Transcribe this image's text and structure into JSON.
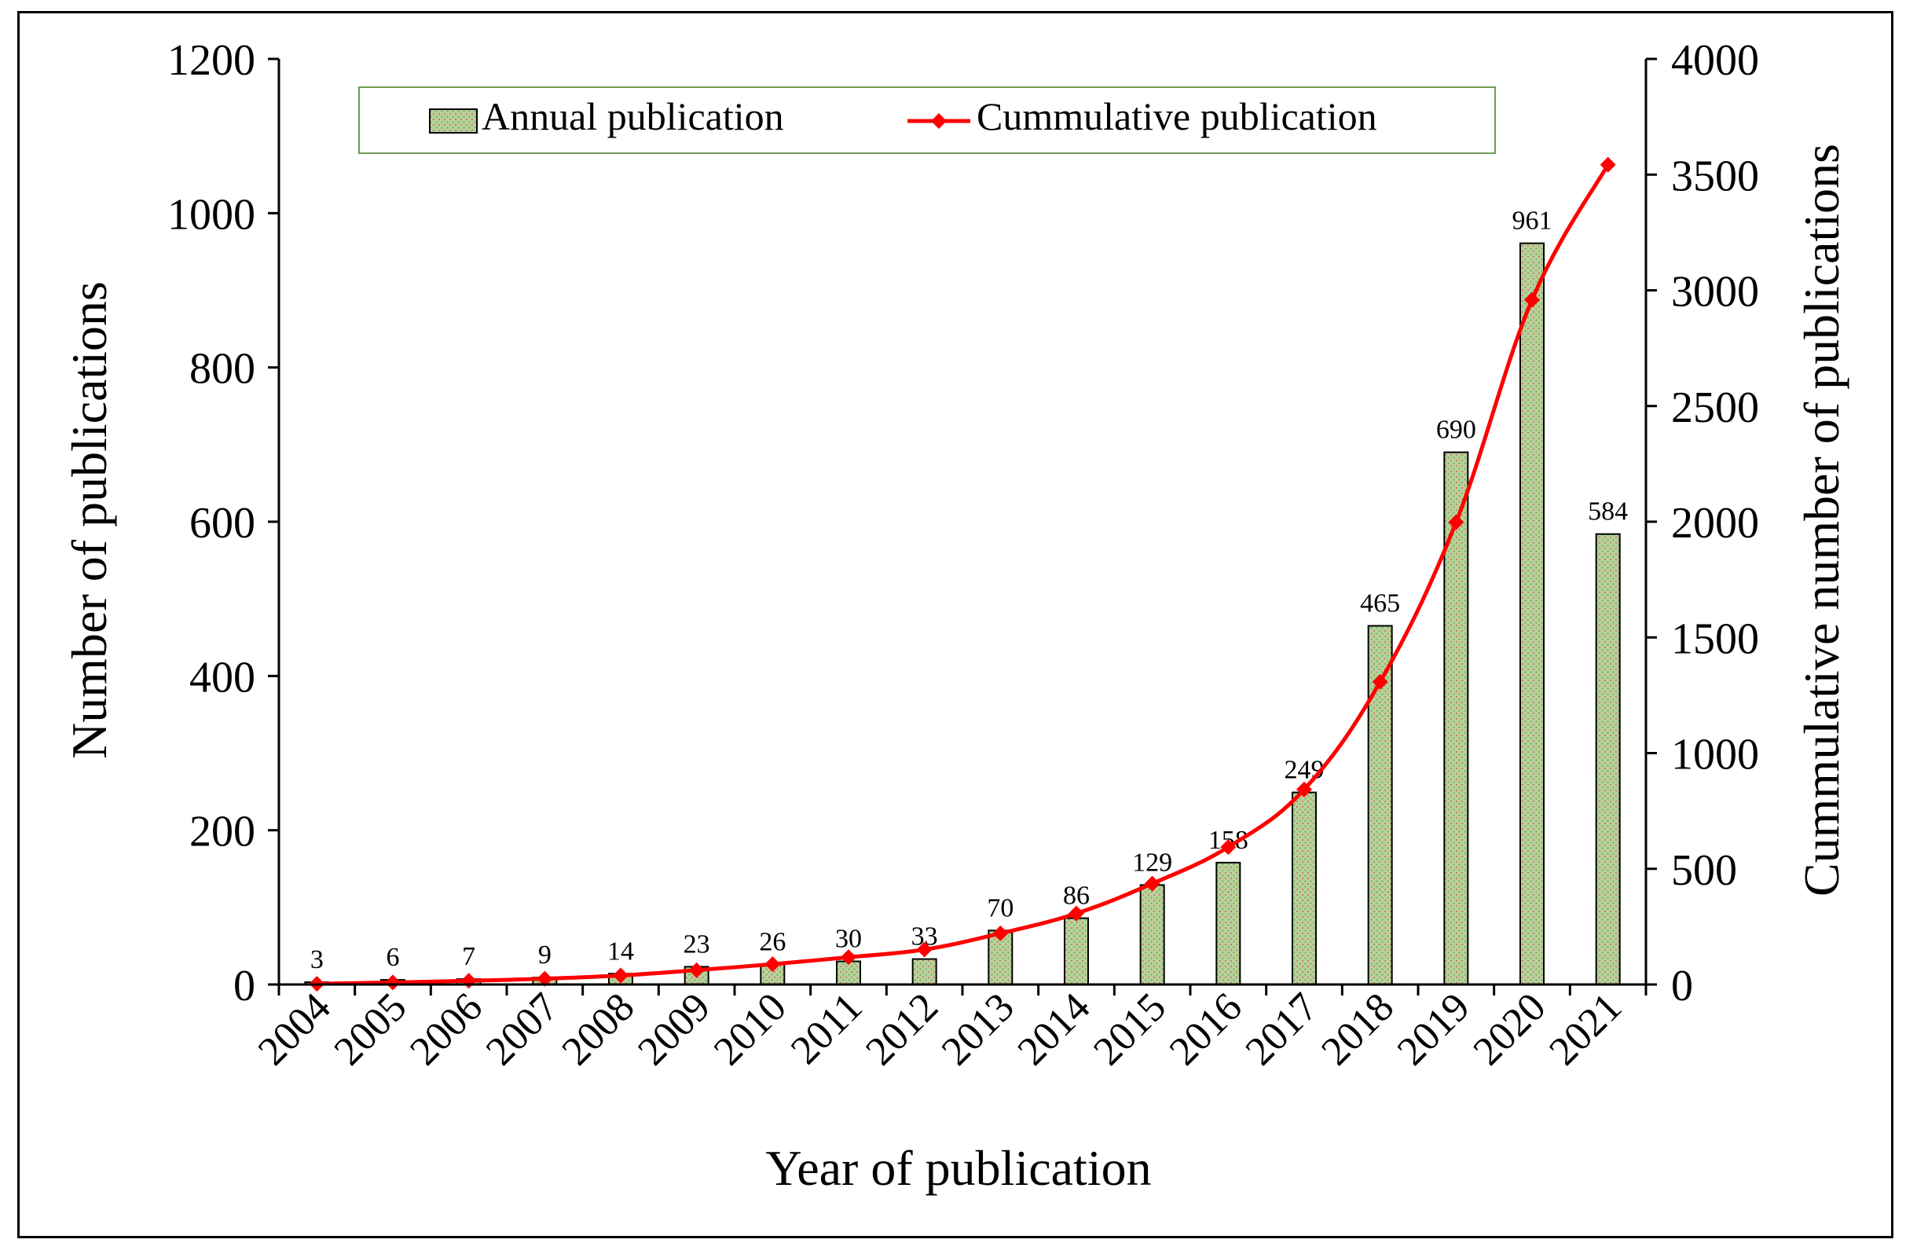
{
  "chart_data": {
    "type": "bar",
    "title": "",
    "xlabel": "Year of publication",
    "ylabel": "Number of publications",
    "y2label": "Cummulative number of publications",
    "ylim": [
      0,
      1200
    ],
    "y2lim": [
      0,
      4000
    ],
    "yticks": [
      "0",
      "200",
      "400",
      "600",
      "800",
      "1000",
      "1200"
    ],
    "y2ticks": [
      "0",
      "500",
      "1000",
      "1500",
      "2000",
      "2500",
      "3000",
      "3500",
      "4000"
    ],
    "categories": [
      "2004",
      "2005",
      "2006",
      "2007",
      "2008",
      "2009",
      "2010",
      "2011",
      "2012",
      "2013",
      "2014",
      "2015",
      "2016",
      "2017",
      "2018",
      "2019",
      "2020",
      "2021"
    ],
    "series": [
      {
        "name": "Annual publication",
        "type": "bar",
        "axis": "left",
        "values": [
          3,
          6,
          7,
          9,
          14,
          23,
          26,
          30,
          33,
          70,
          86,
          129,
          158,
          249,
          465,
          690,
          961,
          584
        ],
        "labels": [
          "3",
          "6",
          "7",
          "9",
          "14",
          "23",
          "26",
          "30",
          "33",
          "70",
          "86",
          "129",
          "158",
          "249",
          "465",
          "690",
          "961",
          "584"
        ],
        "color": "#a9c98a"
      },
      {
        "name": "Cummulative publication",
        "type": "line",
        "axis": "right",
        "values": [
          3,
          9,
          16,
          25,
          39,
          62,
          88,
          118,
          151,
          221,
          307,
          436,
          594,
          843,
          1308,
          1998,
          2959,
          3543
        ],
        "color": "#ff0000"
      }
    ],
    "legend": "top-center"
  }
}
